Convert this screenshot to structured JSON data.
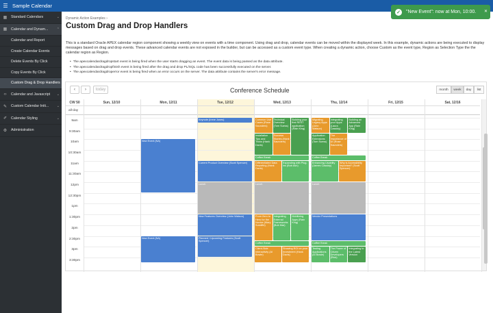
{
  "app": {
    "title": "Sample Calendar"
  },
  "sidebar": {
    "items": [
      {
        "label": "Standard Calendars",
        "icon": "calendar-icon",
        "chev": "⌄"
      },
      {
        "label": "Calendar and Dynam...",
        "icon": "calendar-icon",
        "chev": "⌃"
      },
      {
        "label": "Calendar and Report"
      },
      {
        "label": "Create Calendar Events"
      },
      {
        "label": "Delete Events By Click"
      },
      {
        "label": "Copy Events By Click"
      },
      {
        "label": "Custom Drag & Drop Handlers"
      },
      {
        "label": "Calendar and Javascript",
        "icon": "code-icon",
        "chev": "⌄"
      },
      {
        "label": "Custom Calendar Initi...",
        "icon": "wrench-icon",
        "chev": "⌄"
      },
      {
        "label": "Calendar Styling",
        "icon": "brush-icon",
        "chev": "⌄"
      },
      {
        "label": "Administration",
        "icon": "gear-icon"
      }
    ]
  },
  "breadcrumb": "Dynamic Action Examples",
  "page_title": "Custom Drag and Drop Handlers",
  "description": "This is a standard Oracle APEX calendar region component showing a weekly view on events with a time component. Using drag and drop, calendar events can be moved within the displayed week. In this example, dynamic actions are being executed to display messages based on drag and drop events. These advanced calendar events are not exposed in the builder, but can be accessed as a custom event type. When creating a dynamic action, choose Custom as the event type, Region as Selection Type the the calendar region as Region.",
  "bullets": [
    "The apexcalendardragdropstart event is being fired when the user starts dragging an event. The event data is being passed as the data attribute.",
    "The apexcalendardragdropfinish event is being fired after the drag and drop PL/SQL code has been successfully executed on the server.",
    "The apexcalendardragdroperror event is being fired when an error occurs on the server. The data attribute contains the server's error message."
  ],
  "calendar": {
    "title": "Conference Schedule",
    "prev": "‹",
    "next": "›",
    "today": "today",
    "views": [
      "month",
      "week",
      "day",
      "list"
    ],
    "active_view": "week",
    "week_label": "CW 50",
    "allday_label": "all-day",
    "days": [
      "Sun, 12/10",
      "Mon, 12/11",
      "Tue, 12/12",
      "Wed, 12/13",
      "Thu, 12/14",
      "Fri, 12/15",
      "Sat, 12/16"
    ],
    "times": [
      "9am",
      "9:30am",
      "10am",
      "10:30am",
      "11am",
      "11:30am",
      "12pm",
      "12:30pm",
      "1pm",
      "1:30pm",
      "2pm",
      "2:30pm",
      "3pm",
      "3:30pm"
    ],
    "events": [
      {
        "day": 1,
        "start": 10.0,
        "end": 12.5,
        "color": "blue",
        "title": "New Event (NA)"
      },
      {
        "day": 1,
        "start": 14.5,
        "end": 15.75,
        "color": "blue",
        "title": "New Event (NA)"
      },
      {
        "day": 2,
        "start": 9.0,
        "end": 9.25,
        "color": "blue",
        "title": "Keynote (Irene Jones)"
      },
      {
        "day": 2,
        "start": 11.0,
        "end": 12.0,
        "color": "blue",
        "title": "Current Product Overview (Scott Spencer)"
      },
      {
        "day": 2,
        "start": 12.0,
        "end": 13.5,
        "color": "gray",
        "title": "Lunch"
      },
      {
        "day": 2,
        "start": 13.5,
        "end": 14.5,
        "color": "blue",
        "title": "New Features Overview (John Watson)"
      },
      {
        "day": 2,
        "start": 14.5,
        "end": 15.5,
        "color": "blue",
        "title": "Planned / Upcoming Features (Scott Spencer)"
      },
      {
        "day": 3,
        "start": 9.0,
        "end": 9.75,
        "color": "orange",
        "col": 0,
        "cols": 3,
        "title": "Common Use Cases (Rose Saunders)"
      },
      {
        "day": 3,
        "start": 9.0,
        "end": 9.75,
        "color": "green",
        "col": 1,
        "cols": 3,
        "title": "Technical Overview (Tom Suess)"
      },
      {
        "day": 3,
        "start": 9.0,
        "end": 10.75,
        "color": "green",
        "col": 2,
        "cols": 3,
        "title": "Building your first REST application (Rain King)"
      },
      {
        "day": 3,
        "start": 9.75,
        "end": 10.75,
        "color": "green",
        "col": 0,
        "cols": 3,
        "title": "Installation Tips and Tricks (Hank Davis)"
      },
      {
        "day": 3,
        "start": 9.75,
        "end": 10.75,
        "color": "orange",
        "col": 1,
        "cols": 3,
        "title": "Success Stories (Hank Saunders)"
      },
      {
        "day": 3,
        "start": 10.75,
        "end": 11.0,
        "color": "lgreen",
        "col": 0,
        "cols": 1,
        "title": "Coffee Break"
      },
      {
        "day": 3,
        "start": 11.0,
        "end": 12.0,
        "color": "orange",
        "col": 0,
        "cols": 2,
        "title": "Differentiated Data Reporting (Hank Davis)"
      },
      {
        "day": 3,
        "start": 11.0,
        "end": 12.0,
        "color": "lgreen",
        "col": 1,
        "cols": 2,
        "title": "Expanding with Plug-ins (Bob Ash)"
      },
      {
        "day": 3,
        "start": 12.0,
        "end": 13.5,
        "color": "gray",
        "col": 0,
        "cols": 1,
        "title": "Lunch"
      },
      {
        "day": 3,
        "start": 13.5,
        "end": 14.75,
        "color": "orange",
        "col": 0,
        "cols": 3,
        "title": "From Zero to Hero for the Novice (Mary Sutcliffe)"
      },
      {
        "day": 3,
        "start": 13.5,
        "end": 14.75,
        "color": "lgreen",
        "col": 1,
        "cols": 3,
        "title": "Integrating External Frameworks (Bob Mar)"
      },
      {
        "day": 3,
        "start": 13.5,
        "end": 14.75,
        "color": "lgreen",
        "col": 2,
        "cols": 3,
        "title": "Mobilizing Apps (Rain King)"
      },
      {
        "day": 3,
        "start": 14.75,
        "end": 15.0,
        "color": "lgreen",
        "col": 0,
        "cols": 1,
        "title": "Coffee Break"
      },
      {
        "day": 3,
        "start": 15.0,
        "end": 15.75,
        "color": "orange",
        "col": 0,
        "cols": 2,
        "title": "Client-Side Interactivity (Al Bowie)"
      },
      {
        "day": 3,
        "start": 15.0,
        "end": 15.75,
        "color": "orange",
        "col": 1,
        "cols": 2,
        "title": "Showing ROI on your Investment (Hank Davis)"
      },
      {
        "day": 4,
        "start": 9.0,
        "end": 9.75,
        "color": "orange",
        "col": 0,
        "cols": 3,
        "title": "Migrating Legacy Apps (John Watson)"
      },
      {
        "day": 4,
        "start": 9.0,
        "end": 9.75,
        "color": "green",
        "col": 1,
        "cols": 3,
        "title": "Integrating your Apps (Laura Cassidy)"
      },
      {
        "day": 4,
        "start": 9.0,
        "end": 9.75,
        "color": "green",
        "col": 2,
        "cols": 3,
        "title": "Building an Advanced App (Rain King)"
      },
      {
        "day": 4,
        "start": 9.75,
        "end": 10.75,
        "color": "green",
        "col": 0,
        "cols": 3,
        "title": "Application Extensions (Tom Suess)"
      },
      {
        "day": 4,
        "start": 9.75,
        "end": 10.75,
        "color": "orange",
        "col": 1,
        "cols": 3,
        "title": "The Importance of UI (Rose Saunders)"
      },
      {
        "day": 4,
        "start": 10.75,
        "end": 11.0,
        "color": "lgreen",
        "col": 0,
        "cols": 1,
        "title": "Coffee Break"
      },
      {
        "day": 4,
        "start": 11.0,
        "end": 12.0,
        "color": "lgreen",
        "col": 0,
        "cols": 2,
        "title": "Enhancing Usability (James Cassidy)"
      },
      {
        "day": 4,
        "start": 11.0,
        "end": 12.0,
        "color": "orange",
        "col": 1,
        "cols": 2,
        "title": "Why is Accessibility Important? (Scott Spencer)"
      },
      {
        "day": 4,
        "start": 12.0,
        "end": 13.5,
        "color": "gray",
        "col": 0,
        "cols": 1,
        "title": "Lunch"
      },
      {
        "day": 4,
        "start": 13.5,
        "end": 14.75,
        "color": "blue",
        "col": 0,
        "cols": 1,
        "title": "Vendor Presentations"
      },
      {
        "day": 4,
        "start": 14.75,
        "end": 15.0,
        "color": "lgreen",
        "col": 0,
        "cols": 1,
        "title": "Coffee Break"
      },
      {
        "day": 4,
        "start": 15.0,
        "end": 15.75,
        "color": "lgreen",
        "col": 0,
        "cols": 3,
        "title": "Testing Applications (Al Bowie)"
      },
      {
        "day": 4,
        "start": 15.0,
        "end": 15.75,
        "color": "lgreen",
        "col": 1,
        "cols": 3,
        "title": "The Power of Citizen Developers (Rick)"
      },
      {
        "day": 4,
        "start": 15.0,
        "end": 15.75,
        "color": "green",
        "col": 2,
        "cols": 3,
        "title": "Integrating to the Latest Version"
      }
    ]
  },
  "toast": {
    "text": "\"New Event\": now at Mon, 10:00.",
    "icon": "check-icon",
    "close": "✕"
  },
  "colors": {
    "topbar": "#1a5ca6",
    "sidebar": "#2c3034",
    "toast": "#3e9a4c",
    "event_blue": "#4a80d0",
    "event_orange": "#e89a2c",
    "event_green": "#4aa050"
  }
}
